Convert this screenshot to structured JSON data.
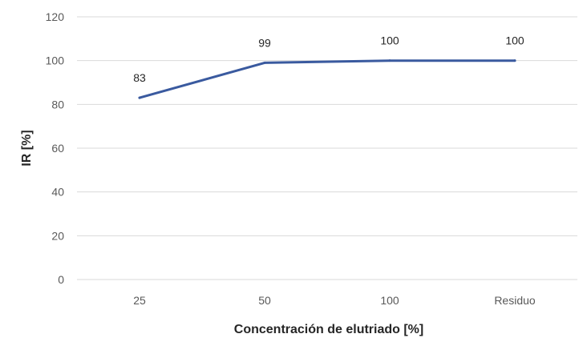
{
  "chart_data": {
    "type": "line",
    "categories": [
      "25",
      "50",
      "100",
      "Residuo"
    ],
    "series": [
      {
        "values": [
          83,
          99,
          100,
          100
        ],
        "color": "#3a5a9f"
      }
    ],
    "data_labels": [
      "83",
      "99",
      "100",
      "100"
    ],
    "xlabel": "Concentración de elutriado [%]",
    "ylabel": "IR [%]",
    "ylim": [
      0,
      120
    ],
    "yticks": [
      0,
      20,
      40,
      60,
      80,
      100,
      120
    ],
    "grid": true,
    "legend": "none"
  }
}
